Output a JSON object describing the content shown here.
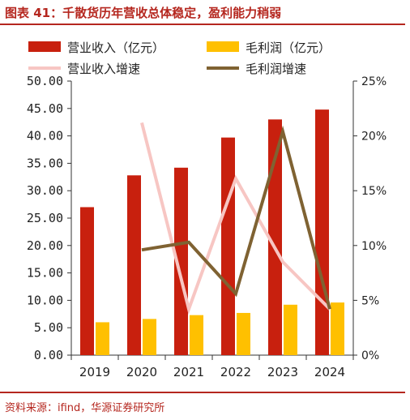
{
  "header": {
    "title": "图表 41：千散货历年营收总体稳定，盈利能力稍弱"
  },
  "footer": {
    "source": "资料来源：ifind，华源证券研究所"
  },
  "colors": {
    "revenue_bar": "#c8200e",
    "profit_bar": "#ffc000",
    "revenue_growth_line": "#f7c6c3",
    "profit_growth_line": "#7f6232",
    "accent": "#b5271f"
  },
  "chart_data": {
    "type": "bar",
    "categories": [
      "2019",
      "2020",
      "2021",
      "2022",
      "2023",
      "2024"
    ],
    "series": [
      {
        "name": "营业收入（亿元）",
        "kind": "bar",
        "axis": "left",
        "values": [
          27.0,
          32.8,
          34.2,
          39.7,
          43.0,
          44.8
        ]
      },
      {
        "name": "毛利润（亿元）",
        "kind": "bar",
        "axis": "left",
        "values": [
          6.0,
          6.6,
          7.3,
          7.7,
          9.2,
          9.6
        ]
      },
      {
        "name": "营业收入增速",
        "kind": "line",
        "axis": "right",
        "values": [
          null,
          21.2,
          4.2,
          16.1,
          8.5,
          4.2
        ]
      },
      {
        "name": "毛利润增速",
        "kind": "line",
        "axis": "right",
        "values": [
          null,
          9.6,
          10.3,
          5.6,
          20.4,
          4.2
        ]
      }
    ],
    "ylim": [
      0,
      50
    ],
    "y_ticks": [
      "0.00",
      "5.00",
      "10.00",
      "15.00",
      "20.00",
      "25.00",
      "30.00",
      "35.00",
      "40.00",
      "45.00",
      "50.00"
    ],
    "y2lim": [
      0,
      25
    ],
    "y2_ticks": [
      "0%",
      "5%",
      "10%",
      "15%",
      "20%",
      "25%"
    ],
    "legend_position": "top",
    "grid": false
  }
}
